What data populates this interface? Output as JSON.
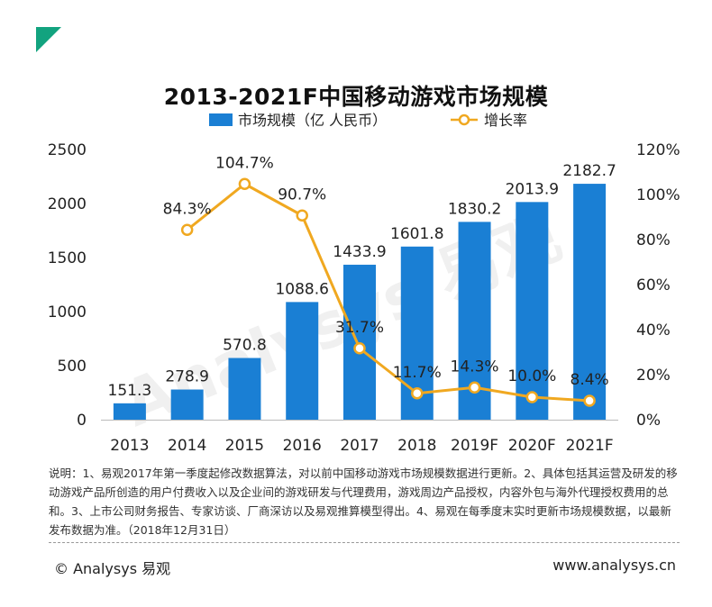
{
  "title": "2013-2021F中国移动游戏市场规模",
  "watermark": "Analysys 易观",
  "notes": "说明：1、易观2017年第一季度起修改数据算法，对以前中国移动游戏市场规模数据进行更新。2、具体包括其运营及研发的移动游戏产品所创造的用户付费收入以及企业间的游戏研发与代理费用，游戏周边产品授权，内容外包与海外代理授权费用的总和。3、上市公司财务报告、专家访谈、厂商深访以及易观推算模型得出。4、易观在每季度末实时更新市场规模数据，以最新发布数据为准。（2018年12月31日）",
  "footer": {
    "copyright": "© Analysys 易观",
    "website": "www.analysys.cn"
  },
  "colors": {
    "bar": "#1a7fd4",
    "line": "#f0a820",
    "accent": "#12a37f"
  },
  "chart_data": {
    "type": "bar",
    "categories": [
      "2013",
      "2014",
      "2015",
      "2016",
      "2017",
      "2018",
      "2019F",
      "2020F",
      "2021F"
    ],
    "series": [
      {
        "name": "市场规模（亿 人民币）",
        "type": "bar",
        "axis": "left",
        "values": [
          151.3,
          278.9,
          570.8,
          1088.6,
          1433.9,
          1601.8,
          1830.2,
          2013.9,
          2182.7
        ]
      },
      {
        "name": "增长率",
        "type": "line",
        "axis": "right",
        "values": [
          null,
          84.3,
          104.7,
          90.7,
          31.7,
          11.7,
          14.3,
          10.0,
          8.4
        ]
      }
    ],
    "bar_labels": [
      "151.3",
      "278.9",
      "570.8",
      "1088.6",
      "1433.9",
      "1601.8",
      "1830.2",
      "2013.9",
      "2182.7"
    ],
    "line_labels": [
      "",
      "84.3%",
      "104.7%",
      "90.7%",
      "31.7%",
      "11.7%",
      "14.3%",
      "10.0%",
      "8.4%"
    ],
    "y_left": {
      "min": 0,
      "max": 2500,
      "ticks": [
        "0",
        "500",
        "1000",
        "1500",
        "2000",
        "2500"
      ]
    },
    "y_right": {
      "min": 0,
      "max": 120,
      "ticks": [
        "0%",
        "20%",
        "40%",
        "60%",
        "80%",
        "100%",
        "120%"
      ]
    },
    "legend": [
      "市场规模（亿 人民币）",
      "增长率"
    ],
    "legend_position": "top",
    "grid": false
  }
}
